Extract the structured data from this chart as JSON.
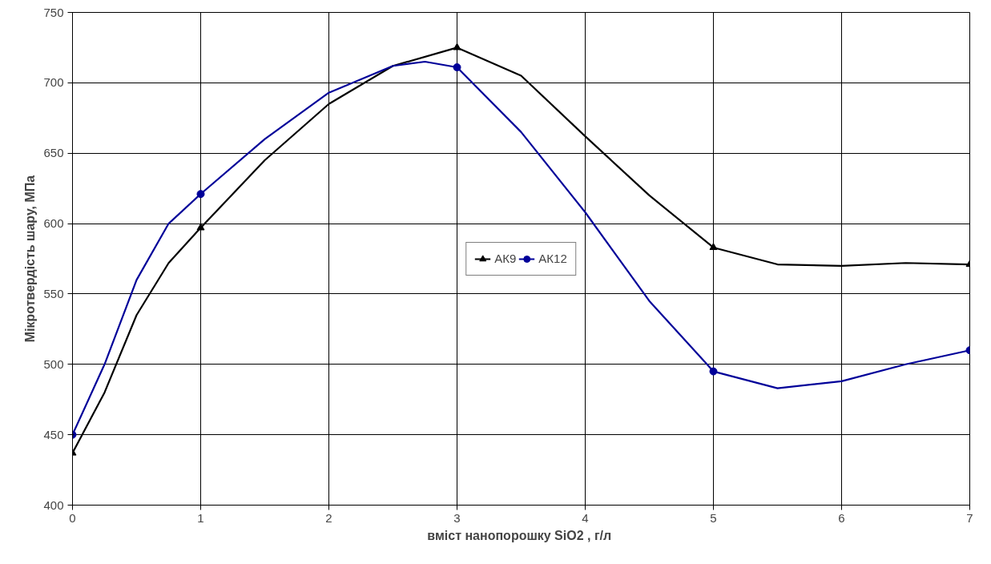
{
  "chart_data": {
    "type": "line",
    "xlabel": "вміст нанопорошку SiO2 ,  г/л",
    "ylabel": "Мікротвердість шару, МПа",
    "x": [
      0,
      1,
      3,
      5,
      7
    ],
    "series": [
      {
        "name": "АК9",
        "color": "#000000",
        "marker": "none",
        "x": [
          0,
          0.25,
          0.5,
          0.75,
          1,
          1.5,
          2,
          2.5,
          3,
          3.5,
          4,
          4.5,
          5,
          5.5,
          6,
          6.5,
          7
        ],
        "values": [
          437,
          480,
          535,
          572,
          597,
          645,
          685,
          712,
          725,
          705,
          662,
          620,
          583,
          571,
          570,
          572,
          571
        ]
      },
      {
        "name": "АК12",
        "color": "#000099",
        "marker": "none",
        "x": [
          0,
          0.25,
          0.5,
          0.75,
          1,
          1.5,
          2,
          2.5,
          2.75,
          3,
          3.5,
          4,
          4.5,
          5,
          5.5,
          6,
          6.5,
          7
        ],
        "values": [
          450,
          500,
          560,
          600,
          621,
          660,
          693,
          712,
          715,
          711,
          665,
          608,
          545,
          495,
          483,
          488,
          500,
          510
        ]
      },
      {
        "type": "scatter",
        "color": "#000000",
        "marker": "triangle",
        "values": [
          437,
          597,
          725,
          583,
          571
        ]
      },
      {
        "type": "scatter",
        "color": "#000099",
        "marker": "circle",
        "values": [
          450,
          621,
          711,
          495,
          510
        ]
      }
    ],
    "xlim": [
      0,
      7
    ],
    "xticks": [
      0,
      1,
      2,
      3,
      4,
      5,
      6,
      7
    ],
    "ylim": [
      400,
      750
    ],
    "yticks": [
      400,
      450,
      500,
      550,
      600,
      650,
      700,
      750
    ],
    "grid": true,
    "legend": "center",
    "line_style": "solid"
  }
}
